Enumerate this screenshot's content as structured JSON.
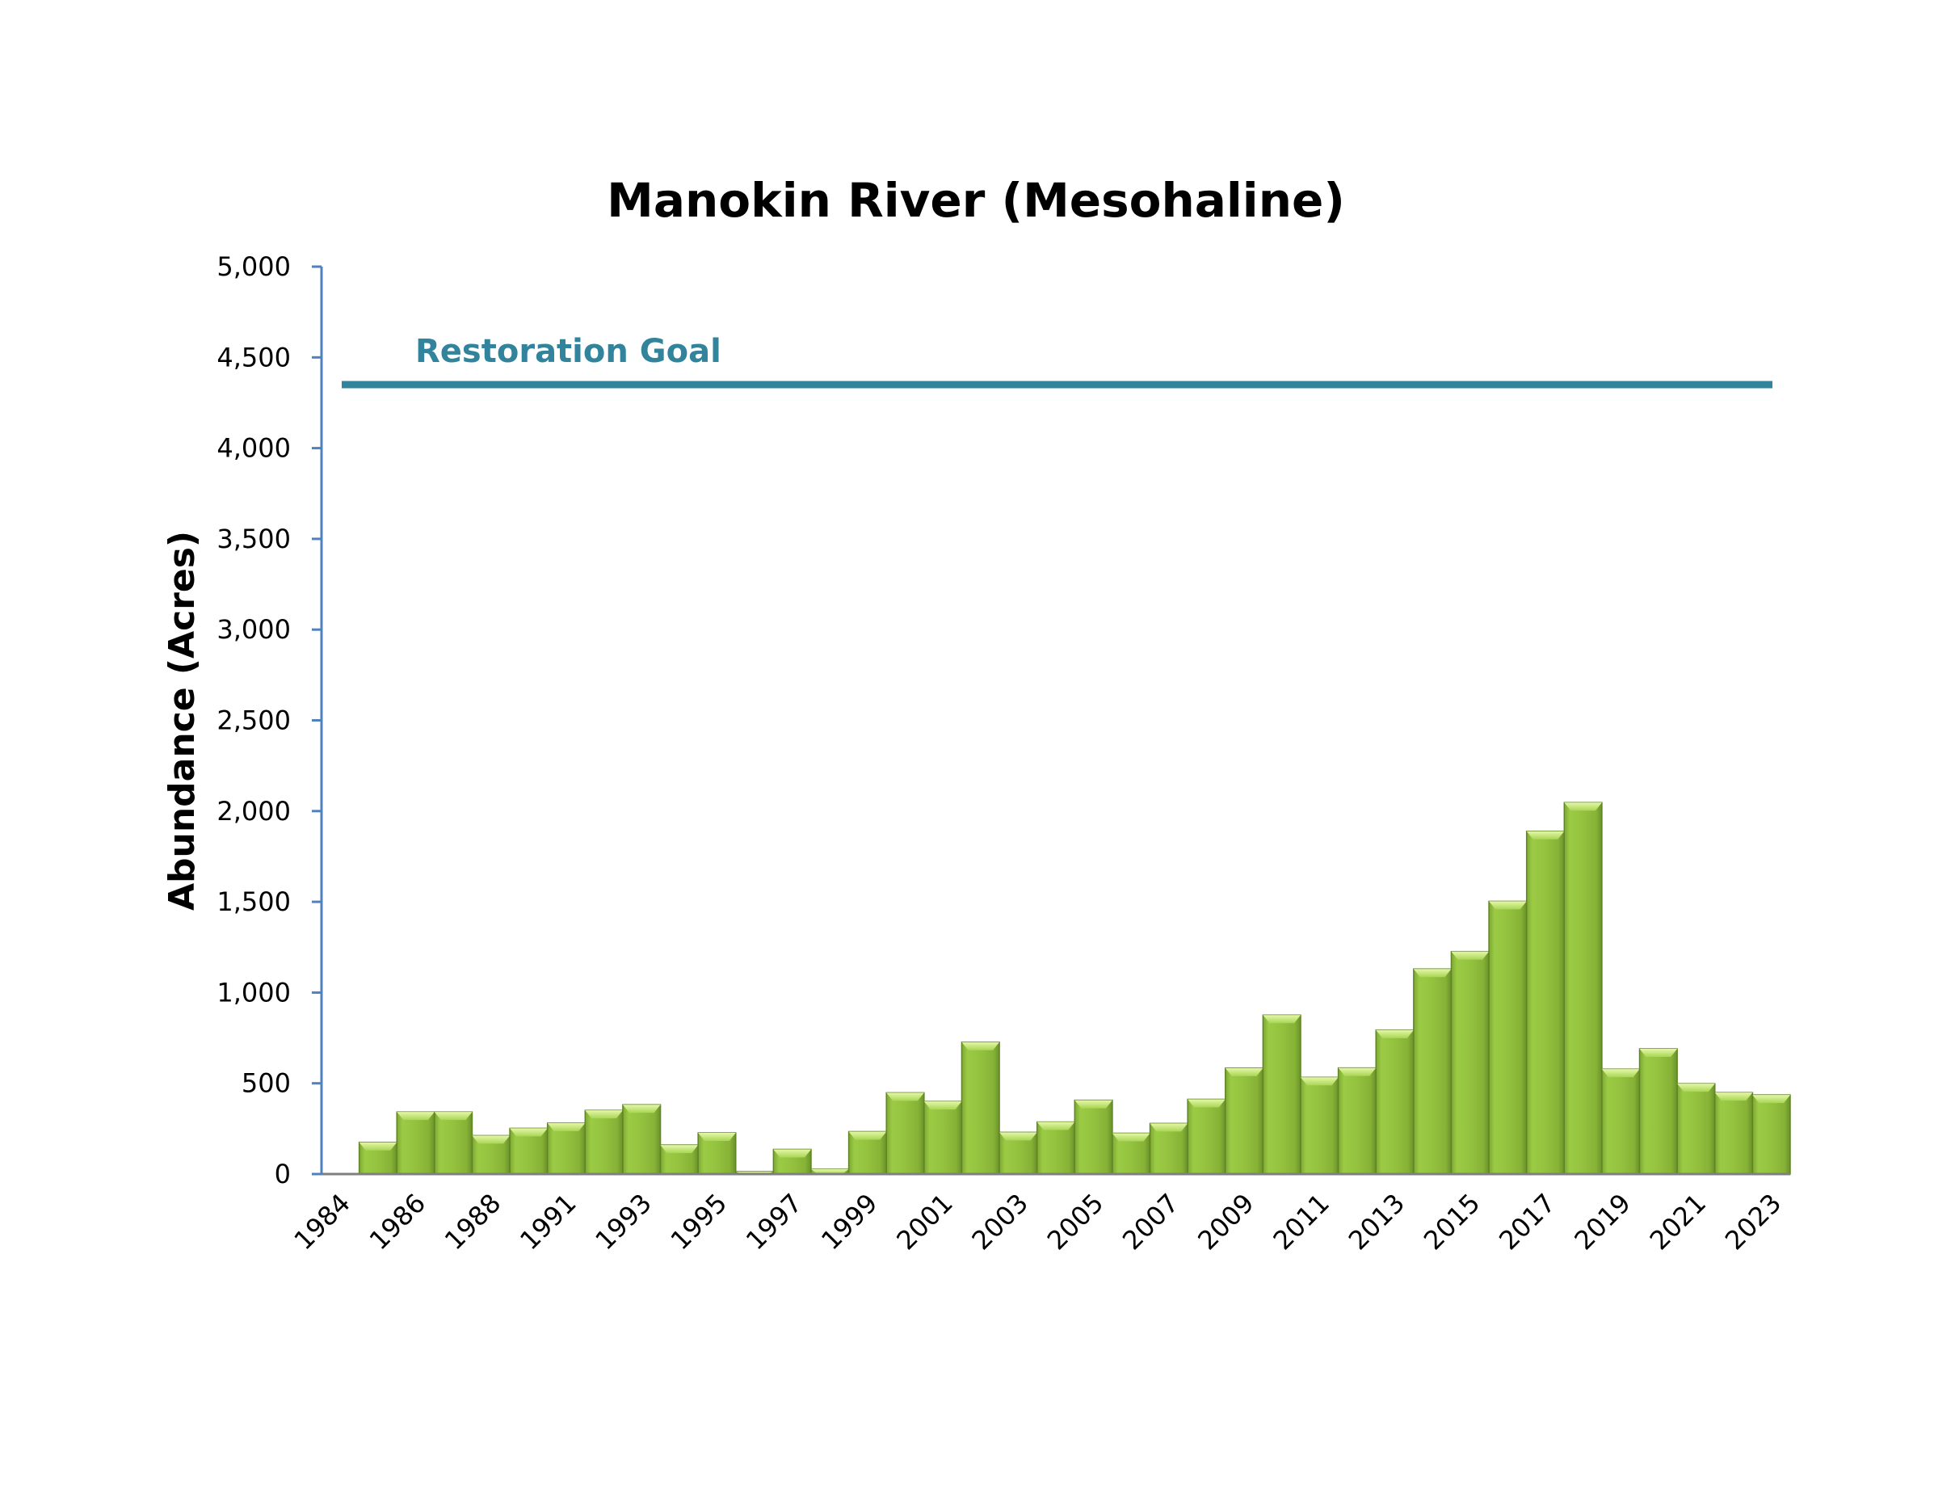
{
  "chart_data": {
    "type": "bar",
    "title": "Manokin River (Mesohaline)",
    "xlabel": "",
    "ylabel": "Abundance (Acres)",
    "ylim": [
      0,
      5000
    ],
    "yticks": [
      0,
      500,
      1000,
      1500,
      2000,
      2500,
      3000,
      3500,
      4000,
      4500,
      5000
    ],
    "ytick_labels": [
      "0",
      "500",
      "1,000",
      "1,500",
      "2,000",
      "2,500",
      "3,000",
      "3,500",
      "4,000",
      "4,500",
      "5,000"
    ],
    "categories": [
      "1984",
      "1985",
      "1986",
      "1987",
      "1988",
      "1989",
      "1991",
      "1992",
      "1993",
      "1994",
      "1995",
      "1996",
      "1997",
      "1998",
      "1999",
      "2000",
      "2001",
      "2002",
      "2003",
      "2004",
      "2005",
      "2006",
      "2007",
      "2008",
      "2009",
      "2010",
      "2011",
      "2012",
      "2013",
      "2014",
      "2015",
      "2016",
      "2017",
      "2018",
      "2019",
      "2020",
      "2021",
      "2022",
      "2023"
    ],
    "x_tick_labels_shown": [
      "1984",
      "1986",
      "1988",
      "1991",
      "1993",
      "1995",
      "1997",
      "1999",
      "2001",
      "2003",
      "2005",
      "2007",
      "2009",
      "2011",
      "2013",
      "2015",
      "2017",
      "2019",
      "2021",
      "2023"
    ],
    "values": [
      0,
      175,
      342,
      342,
      212,
      252,
      281,
      351,
      382,
      160,
      227,
      14,
      136,
      27,
      234,
      448,
      400,
      727,
      230,
      287,
      407,
      225,
      279,
      412,
      584,
      876,
      533,
      585,
      793,
      1130,
      1226,
      1503,
      1889,
      2047,
      578,
      690,
      498,
      449,
      436
    ],
    "reference_line": {
      "label": "Restoration Goal",
      "value": 4350,
      "color": "#31849B"
    },
    "grid": false,
    "legend": "none",
    "colors": {
      "bar": "#92C13E",
      "bar_dark": "#6E9A2E",
      "axis": "#4F81BD",
      "baseline": "#7F7F7F"
    }
  }
}
